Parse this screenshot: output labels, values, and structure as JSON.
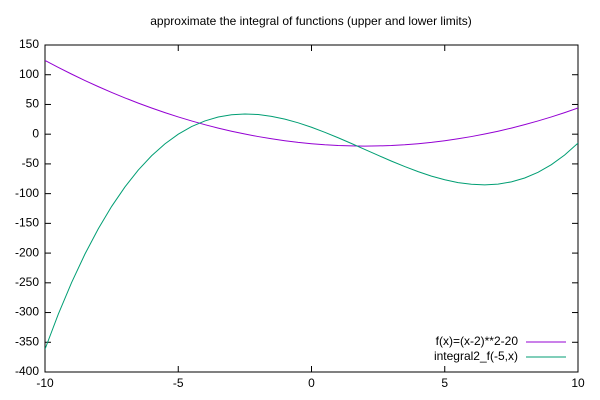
{
  "chart_data": {
    "type": "line",
    "title": "approximate the integral of functions (upper and lower limits)",
    "x": [
      -10,
      -9.5,
      -9,
      -8.5,
      -8,
      -7.5,
      -7,
      -6.5,
      -6,
      -5.5,
      -5,
      -4.5,
      -4,
      -3.5,
      -3,
      -2.5,
      -2,
      -1.5,
      -1,
      -0.5,
      0,
      0.5,
      1,
      1.5,
      2,
      2.5,
      3,
      3.5,
      4,
      4.5,
      5,
      5.5,
      6,
      6.5,
      7,
      7.5,
      8,
      8.5,
      9,
      9.5,
      10
    ],
    "series": [
      {
        "name": "f(x)=(x-2)**2-20",
        "color": "#9400d3",
        "values": [
          124,
          112.25,
          101,
          90.25,
          80,
          70.25,
          61,
          52.25,
          44,
          36.25,
          29,
          22.25,
          16,
          10.25,
          5,
          0.25,
          -4,
          -7.75,
          -11,
          -13.75,
          -16,
          -17.75,
          -19,
          -19.75,
          -20,
          -19.75,
          -19,
          -17.75,
          -16,
          -13.75,
          -11,
          -7.75,
          -4,
          0.25,
          5,
          10.25,
          16,
          22.25,
          29,
          36.25,
          44
        ]
      },
      {
        "name": "integral2_f(-5,x)",
        "color": "#009e73",
        "values": [
          -361.7,
          -302.6,
          -249.3,
          -201.5,
          -159.0,
          -121.5,
          -88.7,
          -60.4,
          -36.3,
          -16.3,
          0,
          12.8,
          22.3,
          28.9,
          32.7,
          34.0,
          33.0,
          30.0,
          25.3,
          19.1,
          11.7,
          3.2,
          -6.0,
          -15.7,
          -25.7,
          -35.6,
          -45.3,
          -54.5,
          -63.0,
          -70.5,
          -76.7,
          -81.4,
          -84.3,
          -85.3,
          -84.0,
          -80.2,
          -73.7,
          -64.1,
          -51.3,
          -35.0,
          -15.0
        ]
      }
    ],
    "xlim": [
      -10,
      10
    ],
    "xticks": [
      -10,
      -5,
      0,
      5,
      10
    ],
    "ylim": [
      -400,
      150
    ],
    "yticks": [
      -400,
      -350,
      -300,
      -250,
      -200,
      -150,
      -100,
      -50,
      0,
      50,
      100,
      150
    ],
    "grid": false,
    "legend": "bottom-right"
  }
}
